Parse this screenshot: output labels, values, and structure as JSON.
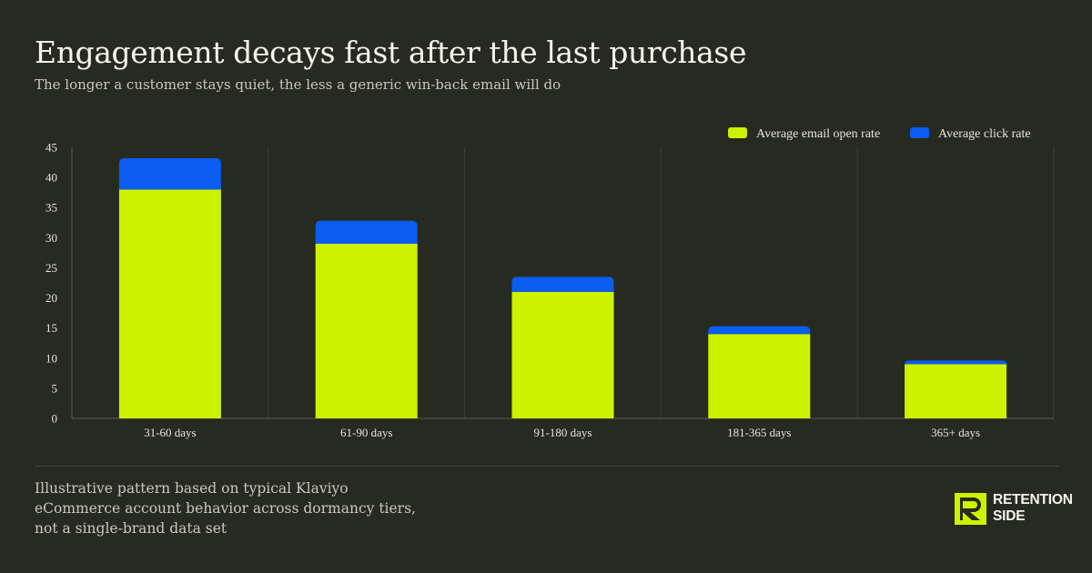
{
  "header": {
    "title": "Engagement decays fast after the last purchase",
    "subtitle": "The longer a customer stays quiet, the less a generic win-back email will do"
  },
  "colors": {
    "background": "#272a21",
    "open_rate": "#ccf200",
    "click_rate": "#0b5cf0",
    "grid": "#3a3e33"
  },
  "chart_data": {
    "type": "bar",
    "stacked": true,
    "categories": [
      "31-60 days",
      "61-90 days",
      "91-180 days",
      "181-365 days",
      "365+ days"
    ],
    "series": [
      {
        "name": "Average email open rate",
        "values": [
          38,
          29,
          21,
          14,
          9
        ]
      },
      {
        "name": "Average click rate",
        "values": [
          5.2,
          3.8,
          2.5,
          1.3,
          0.6
        ]
      }
    ],
    "yticks": [
      0,
      5,
      10,
      15,
      20,
      25,
      30,
      35,
      40,
      45
    ],
    "ylim": [
      0,
      45
    ],
    "legend": "top-right",
    "grid": "vertical separators between categories"
  },
  "footnote": {
    "lines": [
      "Illustrative pattern based on typical Klaviyo",
      "eCommerce account behavior across dormancy tiers,",
      "not a single-brand data set"
    ]
  },
  "brand": {
    "line1": "RETENTION",
    "line2": "SIDE",
    "icon": "retention-side-logo"
  }
}
